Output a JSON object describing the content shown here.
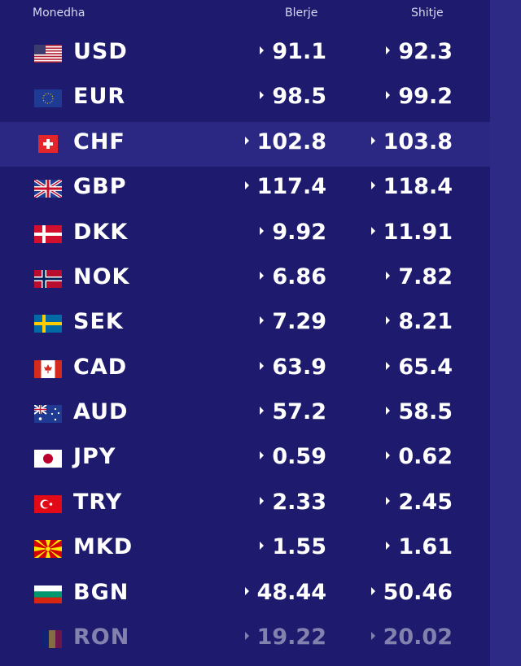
{
  "header": {
    "currency": "Monedha",
    "buy": "Blerje",
    "sell": "Shitje"
  },
  "rates": [
    {
      "code": "USD",
      "buy": "91.1",
      "sell": "92.3",
      "flag": "us-flag-icon"
    },
    {
      "code": "EUR",
      "buy": "98.5",
      "sell": "99.2",
      "flag": "eu-flag-icon"
    },
    {
      "code": "CHF",
      "buy": "102.8",
      "sell": "103.8",
      "flag": "ch-flag-icon"
    },
    {
      "code": "GBP",
      "buy": "117.4",
      "sell": "118.4",
      "flag": "gb-flag-icon"
    },
    {
      "code": "DKK",
      "buy": "9.92",
      "sell": "11.91",
      "flag": "dk-flag-icon"
    },
    {
      "code": "NOK",
      "buy": "6.86",
      "sell": "7.82",
      "flag": "no-flag-icon"
    },
    {
      "code": "SEK",
      "buy": "7.29",
      "sell": "8.21",
      "flag": "se-flag-icon"
    },
    {
      "code": "CAD",
      "buy": "63.9",
      "sell": "65.4",
      "flag": "ca-flag-icon"
    },
    {
      "code": "AUD",
      "buy": "57.2",
      "sell": "58.5",
      "flag": "au-flag-icon"
    },
    {
      "code": "JPY",
      "buy": "0.59",
      "sell": "0.62",
      "flag": "jp-flag-icon"
    },
    {
      "code": "TRY",
      "buy": "2.33",
      "sell": "2.45",
      "flag": "tr-flag-icon"
    },
    {
      "code": "MKD",
      "buy": "1.55",
      "sell": "1.61",
      "flag": "mk-flag-icon"
    },
    {
      "code": "BGN",
      "buy": "48.44",
      "sell": "50.46",
      "flag": "bg-flag-icon"
    },
    {
      "code": "RON",
      "buy": "19.22",
      "sell": "20.02",
      "flag": "ro-flag-icon"
    }
  ],
  "colors": {
    "background": "#1e1b6e",
    "highlight": "#2b2883",
    "sidebar": "#2d2a86",
    "text": "#ffffff"
  },
  "highlighted_row": "CHF"
}
